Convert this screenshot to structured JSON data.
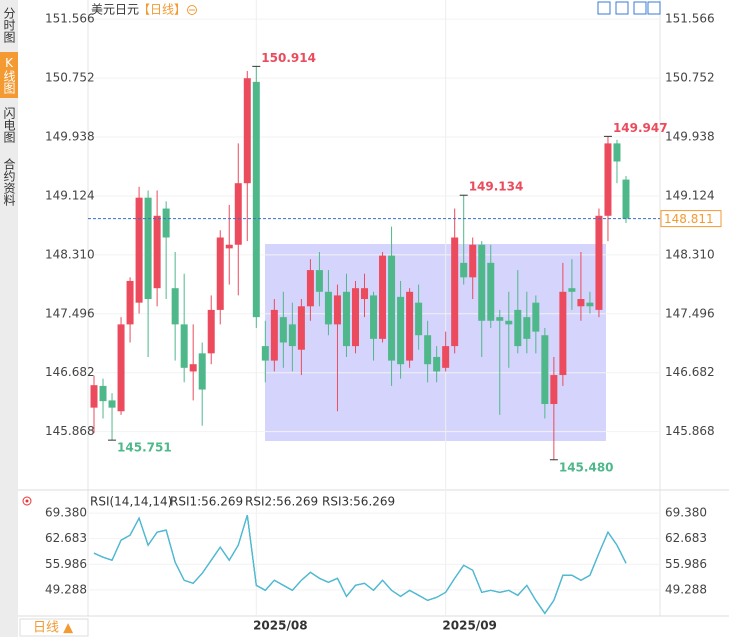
{
  "header": {
    "symbol": "美元日元",
    "period": "【日线】"
  },
  "sidebar": [
    "分时图",
    "K线图",
    "闪电图",
    "合约资料"
  ],
  "period_button": "日线 ▲",
  "chart_data": [
    {
      "type": "candlestick",
      "categories": [
        null,
        null,
        null,
        null,
        null,
        null,
        null,
        null,
        null,
        null,
        null,
        null,
        null,
        null,
        null,
        null,
        null,
        null,
        "2025/08",
        null,
        null,
        null,
        null,
        null,
        null,
        null,
        null,
        null,
        null,
        null,
        null,
        null,
        null,
        null,
        null,
        null,
        null,
        null,
        null,
        "2025/09",
        null,
        null,
        null,
        null,
        null,
        null,
        null,
        null,
        null,
        null,
        null,
        null,
        null,
        null,
        null,
        null,
        null,
        null,
        null,
        null
      ],
      "open": [
        146.2,
        146.5,
        146.3,
        146.15,
        147.35,
        147.65,
        149.1,
        147.85,
        148.95,
        147.85,
        147.35,
        146.7,
        146.95,
        146.95,
        147.55,
        148.4,
        148.45,
        149.3,
        150.7,
        147.05,
        146.85,
        147.45,
        147.35,
        147.0,
        147.6,
        148.1,
        147.8,
        147.35,
        147.8,
        147.05,
        147.7,
        147.75,
        147.15,
        148.3,
        147.73,
        146.85,
        147.65,
        147.2,
        146.9,
        146.75,
        147.05,
        148.2,
        148.0,
        148.45,
        148.2,
        147.45,
        147.4,
        147.55,
        147.45,
        147.65,
        147.2,
        146.25,
        146.65,
        147.85,
        147.6,
        147.65,
        147.55,
        148.85,
        149.85,
        149.35
      ],
      "high": [
        146.64,
        146.6,
        146.4,
        147.45,
        148.0,
        149.25,
        149.2,
        149.2,
        149.05,
        148.35,
        148.05,
        147.35,
        147.1,
        147.75,
        148.65,
        149.0,
        149.85,
        150.85,
        150.914,
        147.4,
        147.7,
        147.8,
        147.65,
        147.7,
        148.25,
        148.35,
        148.1,
        147.9,
        148.05,
        147.95,
        148.05,
        147.8,
        148.35,
        148.7,
        147.95,
        147.85,
        147.9,
        147.4,
        147.05,
        147.25,
        148.95,
        149.134,
        148.55,
        148.5,
        148.45,
        147.55,
        147.8,
        148.1,
        147.8,
        147.75,
        147.3,
        146.9,
        148.2,
        148.25,
        148.35,
        147.8,
        148.95,
        149.947,
        149.9,
        149.4
      ],
      "low": [
        145.85,
        146.05,
        145.751,
        146.1,
        147.1,
        147.5,
        146.9,
        147.6,
        147.7,
        146.85,
        146.55,
        146.3,
        145.95,
        146.8,
        147.35,
        147.9,
        147.75,
        148.5,
        147.3,
        146.55,
        146.7,
        146.75,
        146.7,
        146.65,
        147.4,
        147.6,
        147.2,
        146.15,
        146.9,
        146.95,
        147.45,
        146.85,
        147.1,
        146.5,
        146.6,
        146.75,
        147.0,
        146.55,
        146.55,
        146.7,
        146.95,
        147.9,
        147.7,
        146.9,
        147.3,
        146.1,
        146.75,
        146.95,
        146.95,
        146.95,
        146.05,
        145.48,
        146.5,
        147.55,
        147.4,
        147.5,
        147.45,
        148.5,
        149.3,
        148.75
      ],
      "close": [
        146.51,
        146.29,
        146.2,
        147.35,
        147.95,
        149.1,
        147.7,
        148.85,
        148.55,
        147.35,
        146.75,
        146.8,
        146.45,
        147.55,
        148.55,
        148.45,
        149.3,
        150.75,
        147.45,
        146.85,
        147.55,
        147.1,
        147.05,
        147.6,
        148.1,
        147.8,
        147.35,
        147.75,
        147.05,
        147.85,
        147.85,
        147.15,
        148.3,
        146.85,
        146.8,
        147.8,
        147.2,
        146.8,
        146.7,
        147.05,
        148.55,
        148.0,
        148.45,
        147.4,
        147.4,
        147.4,
        147.35,
        147.05,
        147.15,
        147.25,
        146.25,
        146.65,
        147.8,
        147.8,
        147.7,
        147.6,
        148.85,
        149.85,
        149.6,
        148.811
      ],
      "up_color": "#eb4b5c",
      "down_color": "#4fb88b",
      "ylim": [
        145.09,
        151.72
      ],
      "yticks": [
        151.566,
        150.752,
        149.938,
        149.124,
        {
          "value": 148.31,
          "label": "148.310"
        },
        147.496,
        146.682,
        145.868
      ],
      "last_price": 148.811,
      "annotations": [
        {
          "label": "150.914",
          "value": 150.914
        },
        {
          "label": "149.134",
          "value": 149.134
        },
        {
          "label": "149.947",
          "value": 149.947
        },
        {
          "label": "145.751",
          "value": 145.751
        },
        {
          "label": "145.480",
          "value": 145.48
        }
      ]
    },
    {
      "type": "line",
      "title": "RSI(14,14,14)",
      "ylim": [
        42.7,
        71.5
      ],
      "yticks": [
        {
          "value": 69.38,
          "label": "69.380"
        },
        62.683,
        55.986,
        49.288
      ],
      "series": [
        {
          "name": "RSI1:56.269",
          "color": "#3d8fe0",
          "values": [
            58.88,
            57.83,
            57.04,
            62.29,
            63.6,
            68.07,
            60.98,
            64.39,
            64.92,
            56.51,
            51.79,
            51.0,
            53.62,
            57.04,
            60.45,
            57.04,
            60.98,
            68.85,
            50.47,
            49.16,
            51.79,
            50.47,
            49.16,
            51.79,
            53.89,
            52.31,
            51.26,
            52.31,
            47.58,
            50.47,
            51.0,
            49.16,
            51.79,
            49.16,
            47.58,
            49.16,
            47.85,
            46.53,
            47.32,
            48.63,
            52.31,
            55.72,
            54.41,
            48.63,
            49.16,
            48.63,
            49.16,
            47.85,
            50.47,
            46.53,
            43.12,
            46.53,
            53.1,
            53.1,
            51.79,
            53.1,
            58.88,
            64.39,
            60.98,
            56.269
          ]
        },
        {
          "name": "RSI2:56.269",
          "color": "#4aa9d6",
          "values": [
            58.88,
            57.83,
            57.04,
            62.29,
            63.6,
            68.07,
            60.98,
            64.39,
            64.92,
            56.51,
            51.79,
            51.0,
            53.62,
            57.04,
            60.45,
            57.04,
            60.98,
            68.85,
            50.47,
            49.16,
            51.79,
            50.47,
            49.16,
            51.79,
            53.89,
            52.31,
            51.26,
            52.31,
            47.58,
            50.47,
            51.0,
            49.16,
            51.79,
            49.16,
            47.58,
            49.16,
            47.85,
            46.53,
            47.32,
            48.63,
            52.31,
            55.72,
            54.41,
            48.63,
            49.16,
            48.63,
            49.16,
            47.85,
            50.47,
            46.53,
            43.12,
            46.53,
            53.1,
            53.1,
            51.79,
            53.1,
            58.88,
            64.39,
            60.98,
            56.269
          ]
        },
        {
          "name": "RSI3:56.269",
          "color": "#4fbcd0",
          "values": [
            58.88,
            57.83,
            57.04,
            62.29,
            63.6,
            68.07,
            60.98,
            64.39,
            64.92,
            56.51,
            51.79,
            51.0,
            53.62,
            57.04,
            60.45,
            57.04,
            60.98,
            68.85,
            50.47,
            49.16,
            51.79,
            50.47,
            49.16,
            51.79,
            53.89,
            52.31,
            51.26,
            52.31,
            47.58,
            50.47,
            51.0,
            49.16,
            51.79,
            49.16,
            47.58,
            49.16,
            47.85,
            46.53,
            47.32,
            48.63,
            52.31,
            55.72,
            54.41,
            48.63,
            49.16,
            48.63,
            49.16,
            47.85,
            50.47,
            46.53,
            43.12,
            46.53,
            53.1,
            53.1,
            51.79,
            53.1,
            58.88,
            64.39,
            60.98,
            56.269
          ]
        }
      ]
    }
  ]
}
